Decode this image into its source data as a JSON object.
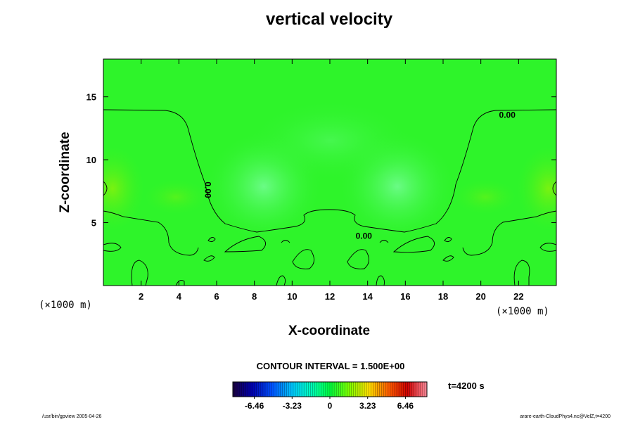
{
  "title": "vertical velocity",
  "contour_interval_text": "CONTOUR INTERVAL = 1.500E+00",
  "time_text": "t=4200 s",
  "footer_left": "/usr/bin/gpview 2005-04-26",
  "footer_right": "arare-earth-CloudPhys4.nc@VelZ,t=4200",
  "chart_data": {
    "type": "heatmap",
    "title": "vertical velocity",
    "xlabel": "X-coordinate",
    "ylabel": "Z-coordinate",
    "x_scale_label": "(×1000 m)",
    "y_scale_label": "(×1000 m)",
    "xlim": [
      0,
      24
    ],
    "ylim": [
      0,
      18
    ],
    "x_ticks": [
      2,
      4,
      6,
      8,
      10,
      12,
      14,
      16,
      18,
      20,
      22
    ],
    "y_ticks": [
      5,
      10,
      15
    ],
    "contour_labels": [
      {
        "text": "0.00",
        "x": 21.4,
        "z": 13.5,
        "rotation": 0
      },
      {
        "text": "0.00",
        "x": 5.5,
        "z": 7.6,
        "rotation": 90
      },
      {
        "text": "0.00",
        "x": 13.8,
        "z": 3.9,
        "rotation": 0
      }
    ],
    "colorbar": {
      "tick_labels": [
        "-6.46",
        "-3.23",
        "0",
        "3.23",
        "6.46"
      ],
      "tick_values": [
        -6.46,
        -3.23,
        0,
        3.23,
        6.46
      ],
      "range": [
        -8.3,
        8.3
      ],
      "colormap": [
        "#1a0040",
        "#0000b0",
        "#0050ff",
        "#00c0ff",
        "#00ffc0",
        "#00ff40",
        "#80ff00",
        "#ffe000",
        "#ff6000",
        "#d00000",
        "#ff90a0"
      ]
    },
    "field_color": "#2ef42a"
  }
}
